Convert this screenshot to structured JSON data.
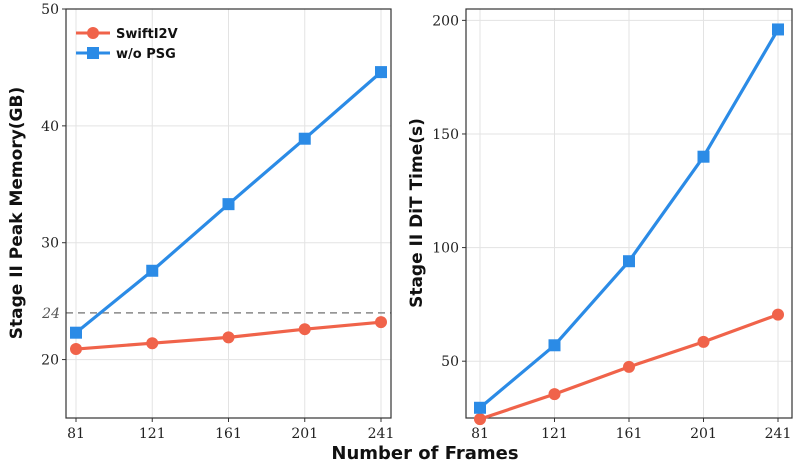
{
  "chart_data": [
    {
      "type": "line",
      "ylabel": "Stage II  Peak Memory(GB)",
      "x": [
        81,
        121,
        161,
        201,
        241
      ],
      "xticks": [
        "81",
        "121",
        "161",
        "201",
        "241"
      ],
      "ylim": [
        15,
        50
      ],
      "yticks": [
        "20",
        "30",
        "40",
        "50"
      ],
      "reference_line": {
        "value": 24,
        "label": "24",
        "style": "dashed"
      },
      "legend": {
        "placement": "top-left"
      },
      "grid": true,
      "series": [
        {
          "name": "SwiftI2V",
          "color": "#f0634a",
          "marker": "circle",
          "values": [
            20.9,
            21.4,
            21.9,
            22.6,
            23.2
          ]
        },
        {
          "name": "w/o PSG",
          "color": "#2b8be6",
          "marker": "square",
          "values": [
            22.3,
            27.6,
            33.3,
            38.9,
            44.6
          ]
        }
      ]
    },
    {
      "type": "line",
      "ylabel": "Stage II  DiT Time(s)",
      "x": [
        81,
        121,
        161,
        201,
        241
      ],
      "xticks": [
        "81",
        "121",
        "161",
        "201",
        "241"
      ],
      "ylim": [
        25,
        205
      ],
      "yticks": [
        "50",
        "100",
        "150",
        "200"
      ],
      "grid": true,
      "series": [
        {
          "name": "SwiftI2V",
          "color": "#f0634a",
          "marker": "circle",
          "values": [
            24.5,
            35.5,
            47.5,
            58.5,
            70.5
          ]
        },
        {
          "name": "w/o PSG",
          "color": "#2b8be6",
          "marker": "square",
          "values": [
            29.5,
            57,
            94,
            140,
            196
          ]
        }
      ]
    }
  ],
  "shared_xlabel": "Number of Frames"
}
